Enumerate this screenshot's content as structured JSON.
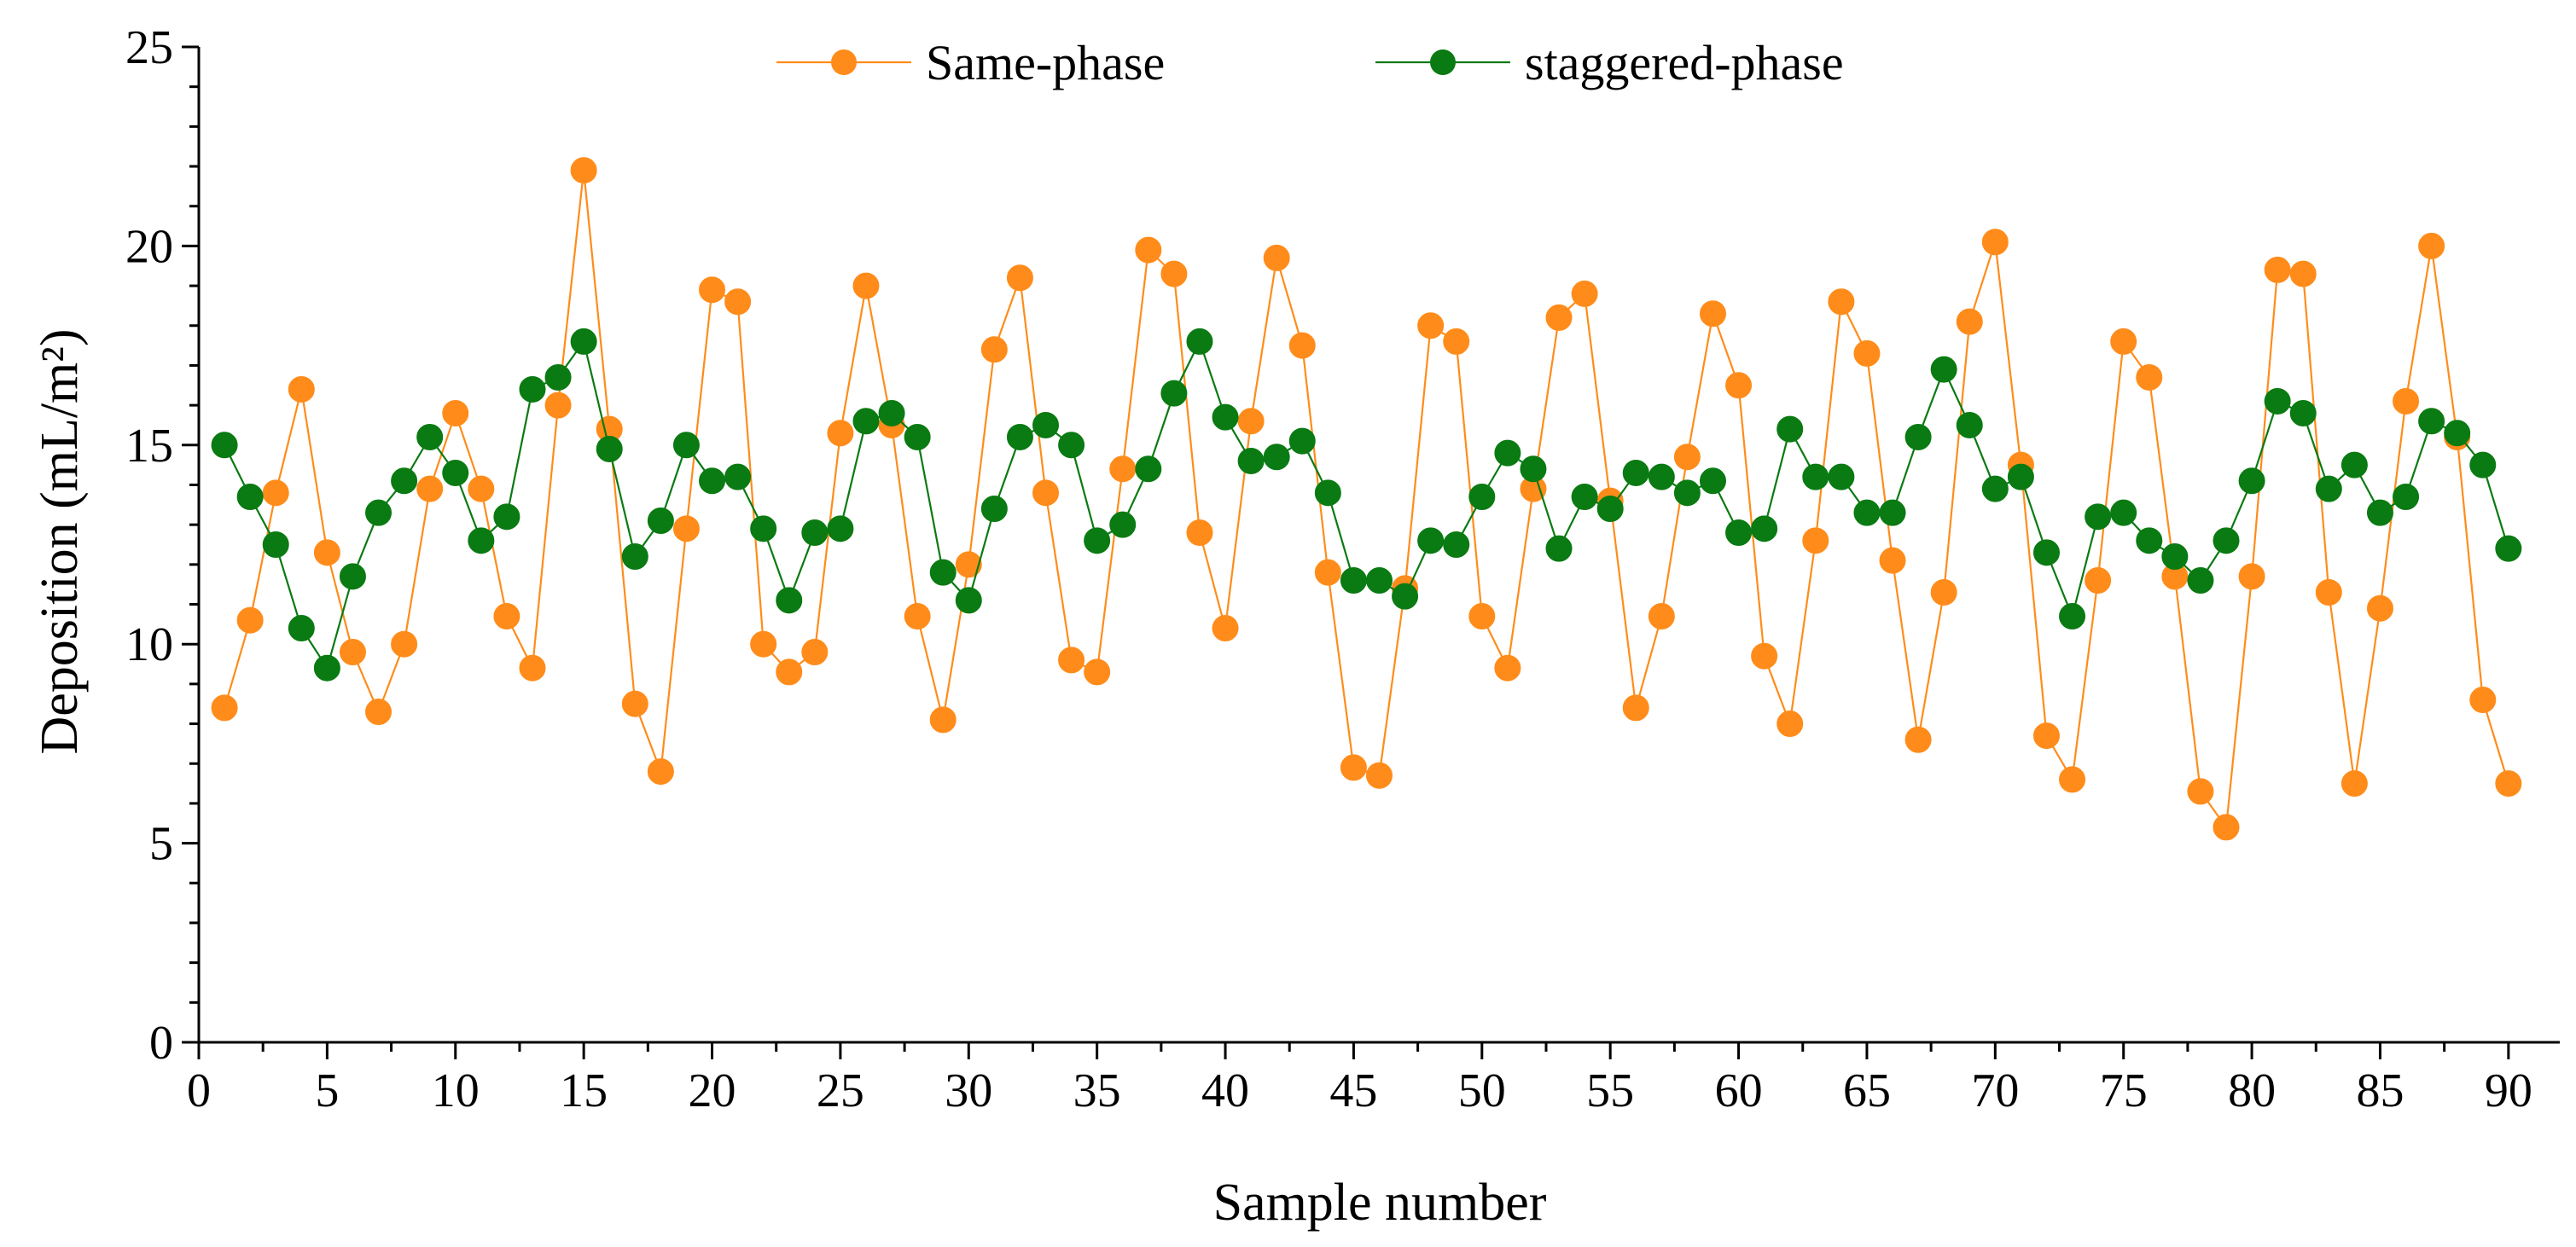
{
  "chart_data": {
    "type": "line",
    "title": "",
    "xlabel": "Sample number",
    "ylabel": "Deposition (mL/m²)",
    "xlim": [
      0,
      92
    ],
    "ylim": [
      0,
      25
    ],
    "x_ticks": [
      0,
      5,
      10,
      15,
      20,
      25,
      30,
      35,
      40,
      45,
      50,
      55,
      60,
      65,
      70,
      75,
      80,
      85,
      90
    ],
    "y_ticks": [
      0,
      5,
      10,
      15,
      20,
      25
    ],
    "grid": false,
    "legend_position": "top-center",
    "x": [
      1,
      2,
      3,
      4,
      5,
      6,
      7,
      8,
      9,
      10,
      11,
      12,
      13,
      14,
      15,
      16,
      17,
      18,
      19,
      20,
      21,
      22,
      23,
      24,
      25,
      26,
      27,
      28,
      29,
      30,
      31,
      32,
      33,
      34,
      35,
      36,
      37,
      38,
      39,
      40,
      41,
      42,
      43,
      44,
      45,
      46,
      47,
      48,
      49,
      50,
      51,
      52,
      53,
      54,
      55,
      56,
      57,
      58,
      59,
      60,
      61,
      62,
      63,
      64,
      65,
      66,
      67,
      68,
      69,
      70,
      71,
      72,
      73,
      74,
      75,
      76,
      77,
      78,
      79,
      80,
      81,
      82,
      83,
      84,
      85,
      86,
      87,
      88,
      89,
      90
    ],
    "series": [
      {
        "name": "Same-phase",
        "color": "#FF8C1A",
        "values": [
          8.4,
          10.6,
          13.8,
          16.4,
          12.3,
          9.8,
          8.3,
          10.0,
          13.9,
          15.8,
          13.9,
          10.7,
          9.4,
          16.0,
          21.9,
          15.4,
          8.5,
          6.8,
          12.9,
          18.9,
          18.6,
          10.0,
          9.3,
          9.8,
          15.3,
          19.0,
          15.5,
          10.7,
          8.1,
          12.0,
          17.4,
          19.2,
          13.8,
          9.6,
          9.3,
          14.4,
          19.9,
          19.3,
          12.8,
          10.4,
          15.6,
          19.7,
          17.5,
          11.8,
          6.9,
          6.7,
          11.4,
          18.0,
          17.6,
          10.7,
          9.4,
          13.9,
          18.2,
          18.8,
          13.6,
          8.4,
          10.7,
          14.7,
          18.3,
          16.5,
          9.7,
          8.0,
          12.6,
          18.6,
          17.3,
          12.1,
          7.6,
          11.3,
          18.1,
          20.1,
          14.5,
          7.7,
          6.6,
          11.6,
          17.6,
          16.7,
          11.7,
          6.3,
          5.4,
          11.7,
          19.4,
          19.3,
          11.3,
          6.5,
          10.9,
          16.1,
          20.0,
          15.2,
          8.6,
          6.5
        ]
      },
      {
        "name": "staggered-phase",
        "color": "#0A7A12",
        "values": [
          15.0,
          13.7,
          12.5,
          10.4,
          9.4,
          11.7,
          13.3,
          14.1,
          15.2,
          14.3,
          12.6,
          13.2,
          16.4,
          16.7,
          17.6,
          14.9,
          12.2,
          13.1,
          15.0,
          14.1,
          14.2,
          12.9,
          11.1,
          12.8,
          12.9,
          15.6,
          15.8,
          15.2,
          11.8,
          11.1,
          13.4,
          15.2,
          15.5,
          15.0,
          12.6,
          13.0,
          14.4,
          16.3,
          17.6,
          15.7,
          14.6,
          14.7,
          15.1,
          13.8,
          11.6,
          11.6,
          11.2,
          12.6,
          12.5,
          13.7,
          14.8,
          14.4,
          12.4,
          13.7,
          13.4,
          14.3,
          14.2,
          13.8,
          14.1,
          12.8,
          12.9,
          15.4,
          14.2,
          14.2,
          13.3,
          13.3,
          15.2,
          16.9,
          15.5,
          13.9,
          14.2,
          12.3,
          10.7,
          13.2,
          13.3,
          12.6,
          12.2,
          11.6,
          12.6,
          14.1,
          16.1,
          15.8,
          13.9,
          14.5,
          13.3,
          13.7,
          15.6,
          15.3,
          14.5,
          12.4
        ]
      }
    ]
  }
}
